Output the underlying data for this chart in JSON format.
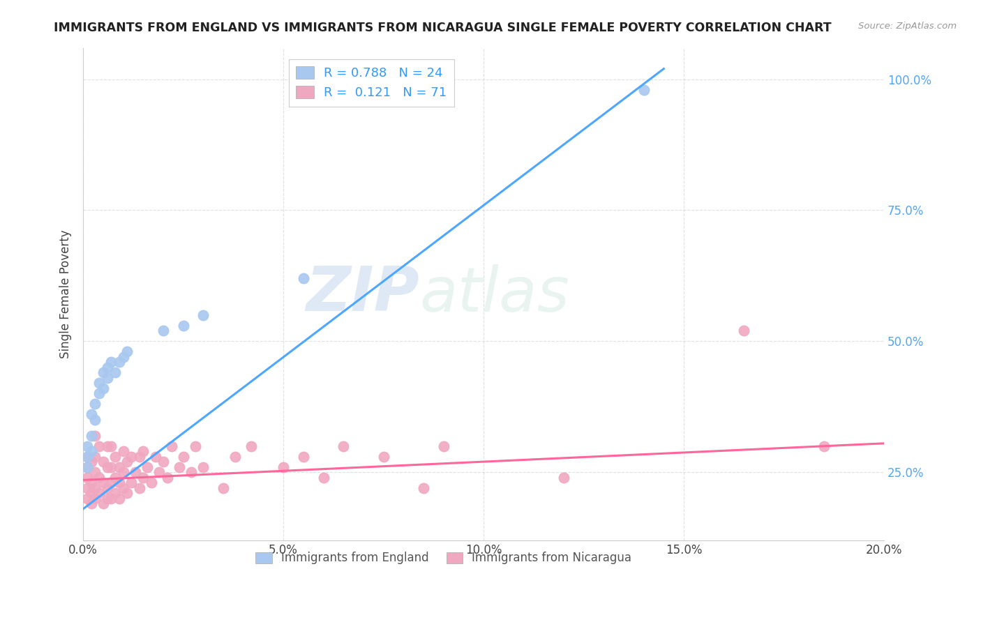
{
  "title": "IMMIGRANTS FROM ENGLAND VS IMMIGRANTS FROM NICARAGUA SINGLE FEMALE POVERTY CORRELATION CHART",
  "source": "Source: ZipAtlas.com",
  "ylabel": "Single Female Poverty",
  "xlim": [
    0.0,
    0.2
  ],
  "ylim": [
    0.12,
    1.06
  ],
  "yticks": [
    0.25,
    0.5,
    0.75,
    1.0
  ],
  "ytick_labels": [
    "25.0%",
    "50.0%",
    "75.0%",
    "100.0%"
  ],
  "xticks": [
    0.0,
    0.05,
    0.1,
    0.15,
    0.2
  ],
  "xtick_labels": [
    "0.0%",
    "5.0%",
    "10.0%",
    "15.0%",
    "20.0%"
  ],
  "england_R": "0.788",
  "england_N": "24",
  "nicaragua_R": "0.121",
  "nicaragua_N": "71",
  "england_color": "#a8c8f0",
  "nicaragua_color": "#f0a8c0",
  "england_line_color": "#4da6ff",
  "nicaragua_line_color": "#ff6699",
  "watermark_zip": "ZIP",
  "watermark_atlas": "atlas",
  "england_points_x": [
    0.001,
    0.001,
    0.001,
    0.002,
    0.002,
    0.002,
    0.003,
    0.003,
    0.004,
    0.004,
    0.005,
    0.005,
    0.006,
    0.006,
    0.007,
    0.008,
    0.009,
    0.01,
    0.011,
    0.02,
    0.025,
    0.03,
    0.055,
    0.14
  ],
  "england_points_y": [
    0.26,
    0.28,
    0.3,
    0.29,
    0.32,
    0.36,
    0.35,
    0.38,
    0.4,
    0.42,
    0.41,
    0.44,
    0.43,
    0.45,
    0.46,
    0.44,
    0.46,
    0.47,
    0.48,
    0.52,
    0.53,
    0.55,
    0.62,
    0.98
  ],
  "nicaragua_points_x": [
    0.001,
    0.001,
    0.001,
    0.001,
    0.001,
    0.002,
    0.002,
    0.002,
    0.002,
    0.003,
    0.003,
    0.003,
    0.003,
    0.003,
    0.004,
    0.004,
    0.004,
    0.005,
    0.005,
    0.005,
    0.006,
    0.006,
    0.006,
    0.006,
    0.007,
    0.007,
    0.007,
    0.007,
    0.008,
    0.008,
    0.008,
    0.009,
    0.009,
    0.009,
    0.01,
    0.01,
    0.01,
    0.011,
    0.011,
    0.012,
    0.012,
    0.013,
    0.014,
    0.014,
    0.015,
    0.015,
    0.016,
    0.017,
    0.018,
    0.019,
    0.02,
    0.021,
    0.022,
    0.024,
    0.025,
    0.027,
    0.028,
    0.03,
    0.035,
    0.038,
    0.042,
    0.05,
    0.055,
    0.06,
    0.065,
    0.075,
    0.085,
    0.09,
    0.12,
    0.165,
    0.185
  ],
  "nicaragua_points_y": [
    0.2,
    0.22,
    0.24,
    0.26,
    0.28,
    0.19,
    0.21,
    0.23,
    0.27,
    0.2,
    0.22,
    0.25,
    0.28,
    0.32,
    0.21,
    0.24,
    0.3,
    0.19,
    0.23,
    0.27,
    0.2,
    0.22,
    0.26,
    0.3,
    0.2,
    0.23,
    0.26,
    0.3,
    0.21,
    0.24,
    0.28,
    0.2,
    0.23,
    0.26,
    0.22,
    0.25,
    0.29,
    0.21,
    0.27,
    0.23,
    0.28,
    0.25,
    0.22,
    0.28,
    0.24,
    0.29,
    0.26,
    0.23,
    0.28,
    0.25,
    0.27,
    0.24,
    0.3,
    0.26,
    0.28,
    0.25,
    0.3,
    0.26,
    0.22,
    0.28,
    0.3,
    0.26,
    0.28,
    0.24,
    0.3,
    0.28,
    0.22,
    0.3,
    0.24,
    0.52,
    0.3
  ],
  "eng_line_x0": 0.0,
  "eng_line_y0": 0.18,
  "eng_line_x1": 0.145,
  "eng_line_y1": 1.02,
  "nic_line_x0": 0.0,
  "nic_line_y0": 0.235,
  "nic_line_x1": 0.2,
  "nic_line_y1": 0.305
}
